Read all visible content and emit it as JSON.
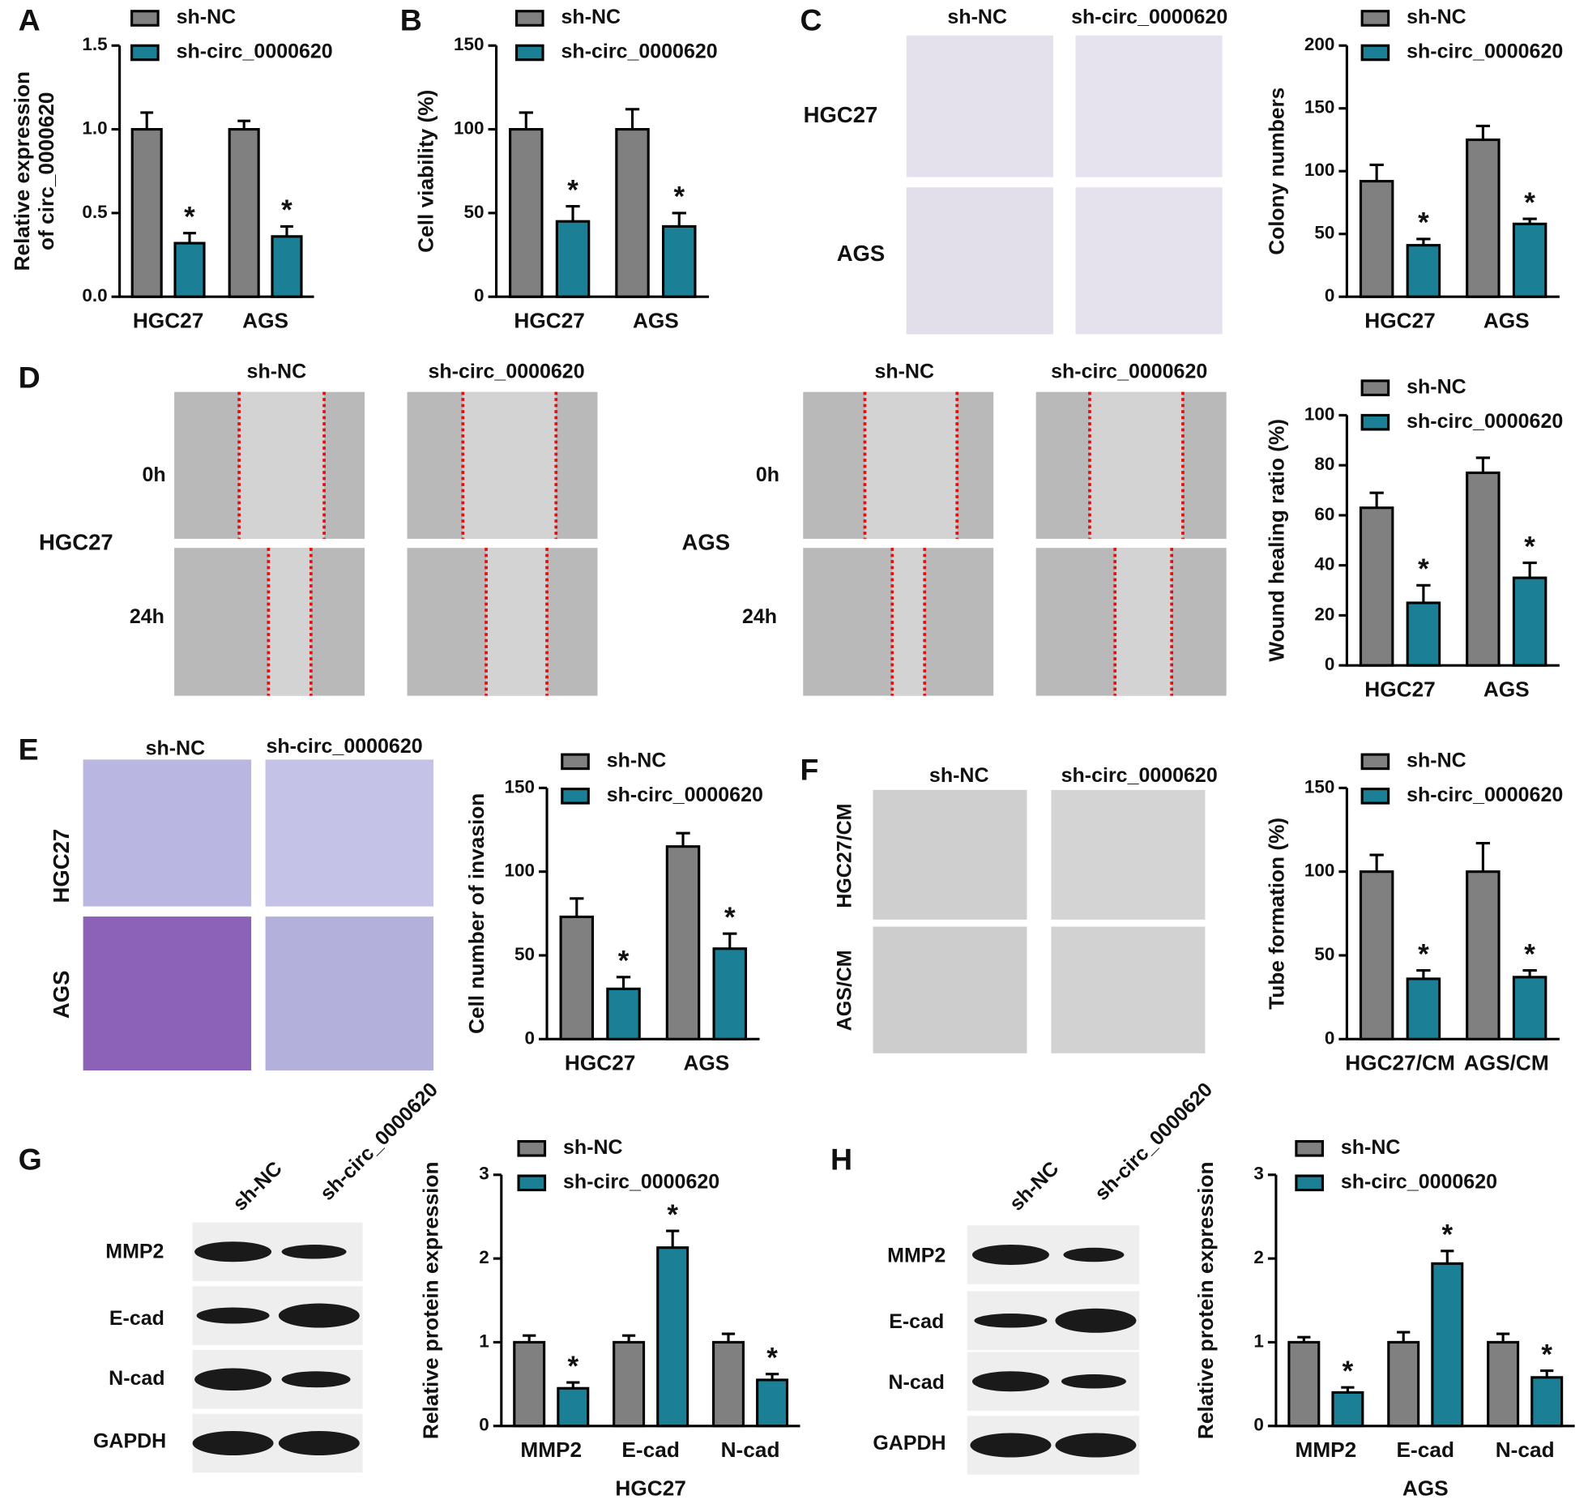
{
  "chart_data": [
    {
      "type": "bar",
      "ylabel": [
        "Relative expression",
        "of circ_0000620"
      ],
      "categories": [
        "HGC27",
        "AGS"
      ],
      "series": [
        {
          "name": "sh-NC",
          "color": "#808080",
          "values": [
            1.0,
            1.0
          ],
          "errors": [
            0.1,
            0.05
          ]
        },
        {
          "name": "sh-circ_0000620",
          "color": "#1b7f95",
          "values": [
            0.32,
            0.36
          ],
          "errors": [
            0.06,
            0.06
          ],
          "marks": [
            "*",
            "*"
          ]
        }
      ],
      "ylim": [
        0,
        1.5
      ],
      "yticks": [
        {
          "value": 0,
          "label": "0.0"
        },
        0.5,
        {
          "value": 1,
          "label": "1.0"
        },
        1.5
      ]
    },
    {
      "type": "bar",
      "ylabel": "Cell viability (%)",
      "categories": [
        "HGC27",
        "AGS"
      ],
      "series": [
        {
          "name": "sh-NC",
          "color": "#808080",
          "values": [
            100,
            100
          ],
          "errors": [
            10,
            12
          ]
        },
        {
          "name": "sh-circ_0000620",
          "color": "#1b7f95",
          "values": [
            45,
            42
          ],
          "errors": [
            9,
            8
          ],
          "marks": [
            "*",
            "*"
          ]
        }
      ],
      "ylim": [
        0,
        150
      ],
      "yticks": [
        0,
        50,
        100,
        150
      ]
    },
    {
      "type": "bar",
      "ylabel": "Colony numbers",
      "categories": [
        "HGC27",
        "AGS"
      ],
      "series": [
        {
          "name": "sh-NC",
          "color": "#808080",
          "values": [
            92,
            125
          ],
          "errors": [
            13,
            11
          ]
        },
        {
          "name": "sh-circ_0000620",
          "color": "#1b7f95",
          "values": [
            41,
            58
          ],
          "errors": [
            5,
            4
          ],
          "marks": [
            "*",
            "*"
          ]
        }
      ],
      "ylim": [
        0,
        200
      ],
      "yticks": [
        0,
        50,
        100,
        150,
        200
      ]
    },
    {
      "type": "bar",
      "ylabel": "Wound healing ratio (%)",
      "categories": [
        "HGC27",
        "AGS"
      ],
      "series": [
        {
          "name": "sh-NC",
          "color": "#808080",
          "values": [
            63,
            77
          ],
          "errors": [
            6,
            6
          ]
        },
        {
          "name": "sh-circ_0000620",
          "color": "#1b7f95",
          "values": [
            25,
            35
          ],
          "errors": [
            7,
            6
          ],
          "marks": [
            "*",
            "*"
          ]
        }
      ],
      "ylim": [
        0,
        100
      ],
      "yticks": [
        0,
        20,
        40,
        60,
        80,
        100
      ]
    },
    {
      "type": "bar",
      "ylabel": "Cell number of invasion",
      "categories": [
        "HGC27",
        "AGS"
      ],
      "series": [
        {
          "name": "sh-NC",
          "color": "#808080",
          "values": [
            73,
            115
          ],
          "errors": [
            11,
            8
          ]
        },
        {
          "name": "sh-circ_0000620",
          "color": "#1b7f95",
          "values": [
            30,
            54
          ],
          "errors": [
            7,
            9
          ],
          "marks": [
            "*",
            "*"
          ]
        }
      ],
      "ylim": [
        0,
        150
      ],
      "yticks": [
        0,
        50,
        100,
        150
      ]
    },
    {
      "type": "bar",
      "ylabel": "Tube formation (%)",
      "categories": [
        "HGC27/CM",
        "AGS/CM"
      ],
      "series": [
        {
          "name": "sh-NC",
          "color": "#808080",
          "values": [
            100,
            100
          ],
          "errors": [
            10,
            17
          ]
        },
        {
          "name": "sh-circ_0000620",
          "color": "#1b7f95",
          "values": [
            36,
            37
          ],
          "errors": [
            5,
            4
          ],
          "marks": [
            "*",
            "*"
          ]
        }
      ],
      "ylim": [
        0,
        150
      ],
      "yticks": [
        0,
        50,
        100,
        150
      ]
    },
    {
      "type": "bar",
      "ylabel": "Relative protein expression",
      "xlabel": "HGC27",
      "categories": [
        "MMP2",
        "E-cad",
        "N-cad"
      ],
      "series": [
        {
          "name": "sh-NC",
          "color": "#808080",
          "values": [
            1,
            1,
            1
          ],
          "errors": [
            0.08,
            0.08,
            0.1
          ]
        },
        {
          "name": "sh-circ_0000620",
          "color": "#1b7f95",
          "values": [
            0.45,
            2.13,
            0.55
          ],
          "errors": [
            0.07,
            0.2,
            0.07
          ],
          "marks": [
            "*",
            "*",
            "*"
          ]
        }
      ],
      "ylim": [
        0,
        3
      ],
      "yticks": [
        0,
        1,
        2,
        3
      ]
    },
    {
      "type": "bar",
      "ylabel": "Relative protein expression",
      "xlabel": "AGS",
      "categories": [
        "MMP2",
        "E-cad",
        "N-cad"
      ],
      "series": [
        {
          "name": "sh-NC",
          "color": "#808080",
          "values": [
            1,
            1,
            1
          ],
          "errors": [
            0.06,
            0.12,
            0.1
          ]
        },
        {
          "name": "sh-circ_0000620",
          "color": "#1b7f95",
          "values": [
            0.4,
            1.94,
            0.58
          ],
          "errors": [
            0.06,
            0.15,
            0.08
          ],
          "marks": [
            "*",
            "*",
            "*"
          ]
        }
      ],
      "ylim": [
        0,
        3
      ],
      "yticks": [
        0,
        1,
        2,
        3
      ]
    }
  ],
  "figure": {
    "texts": [
      "A",
      "B",
      "C",
      "D",
      "E",
      "F",
      "G",
      "H",
      "sh-NC",
      "sh-circ_0000620",
      "HGC27",
      "AGS",
      "sh-NC",
      "sh-circ_0000620",
      "0h",
      "HGC27",
      "24h",
      "sh-NC",
      "sh-circ_0000620",
      "0h",
      "AGS",
      "24h",
      "sh-NC",
      "sh-circ_0000620",
      "HGC27",
      "AGS",
      "sh-NC",
      "sh-circ_0000620",
      "HGC27/CM",
      "AGS/CM",
      "sh-NC",
      "sh-circ_0000620",
      "MMP2",
      "E-cad",
      "N-cad",
      "GAPDH",
      "sh-NC",
      "sh-circ_0000620",
      "MMP2",
      "E-cad",
      "N-cad",
      "GAPDH"
    ]
  }
}
